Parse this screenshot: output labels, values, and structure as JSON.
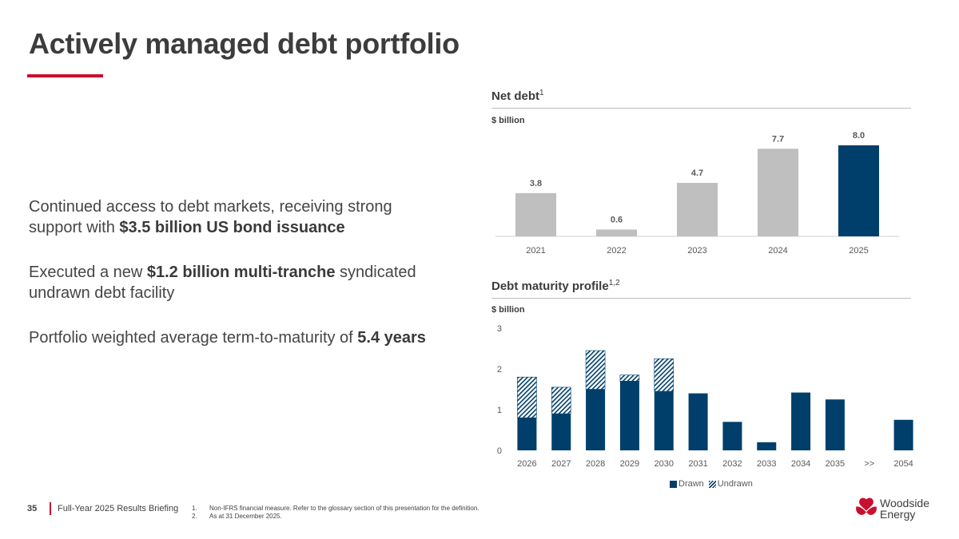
{
  "title": "Actively managed debt portfolio",
  "bullets": [
    {
      "pre": "Continued access to debt markets, receiving strong support with ",
      "bold": "$3.5 billion US bond issuance",
      "post": ""
    },
    {
      "pre": "Executed a new ",
      "bold": "$1.2 billion multi-tranche",
      "post": " syndicated undrawn debt facility"
    },
    {
      "pre": "Portfolio weighted average term-to-maturity of ",
      "bold": "5.4 years",
      "post": ""
    }
  ],
  "net_debt": {
    "heading": "Net debt",
    "sup": "1",
    "unit": "$ billion"
  },
  "maturity": {
    "heading": "Debt maturity profile",
    "sup": "1,2",
    "unit": "$ billion"
  },
  "legend": {
    "drawn": "Drawn",
    "undrawn": "Undrawn"
  },
  "footer": {
    "page": "35",
    "title": "Full-Year 2025 Results Briefing",
    "notes": [
      {
        "n": "1.",
        "text": "Non-IFRS financial measure. Refer to the glossary section of this presentation for the definition."
      },
      {
        "n": "2.",
        "text": "As at 31 December 2025."
      }
    ]
  },
  "logo": {
    "line1": "Woodside",
    "line2": "Energy"
  },
  "colors": {
    "accent": "#c8102e",
    "navy": "#003f6b",
    "grey_bar": "#bfbfbf"
  },
  "chart_data": [
    {
      "type": "bar",
      "title": "Net debt",
      "ylabel": "$ billion",
      "categories": [
        "2021",
        "2022",
        "2023",
        "2024",
        "2025"
      ],
      "values": [
        3.8,
        0.6,
        4.7,
        7.7,
        8.0
      ],
      "labels": [
        "3.8",
        "0.6",
        "4.7",
        "7.7",
        "8.0"
      ],
      "highlight": [
        "2025"
      ],
      "ylim": [
        0,
        8.0
      ]
    },
    {
      "type": "bar",
      "stacked": true,
      "title": "Debt maturity profile",
      "ylabel": "$ billion",
      "categories": [
        "2026",
        "2027",
        "2028",
        "2029",
        "2030",
        "2031",
        "2032",
        "2033",
        "2034",
        "2035",
        ">>",
        "2054"
      ],
      "series": [
        {
          "name": "Drawn",
          "values": [
            0.8,
            0.9,
            1.5,
            1.7,
            1.45,
            1.4,
            0.7,
            0.2,
            1.42,
            1.25,
            0,
            0.75
          ]
        },
        {
          "name": "Undrawn",
          "values": [
            1.0,
            0.65,
            0.95,
            0.15,
            0.8,
            0,
            0,
            0,
            0,
            0,
            0,
            0
          ]
        }
      ],
      "yticks": [
        0,
        1,
        2,
        3
      ],
      "ylim": [
        0,
        3
      ],
      "legend": "bottom"
    }
  ]
}
